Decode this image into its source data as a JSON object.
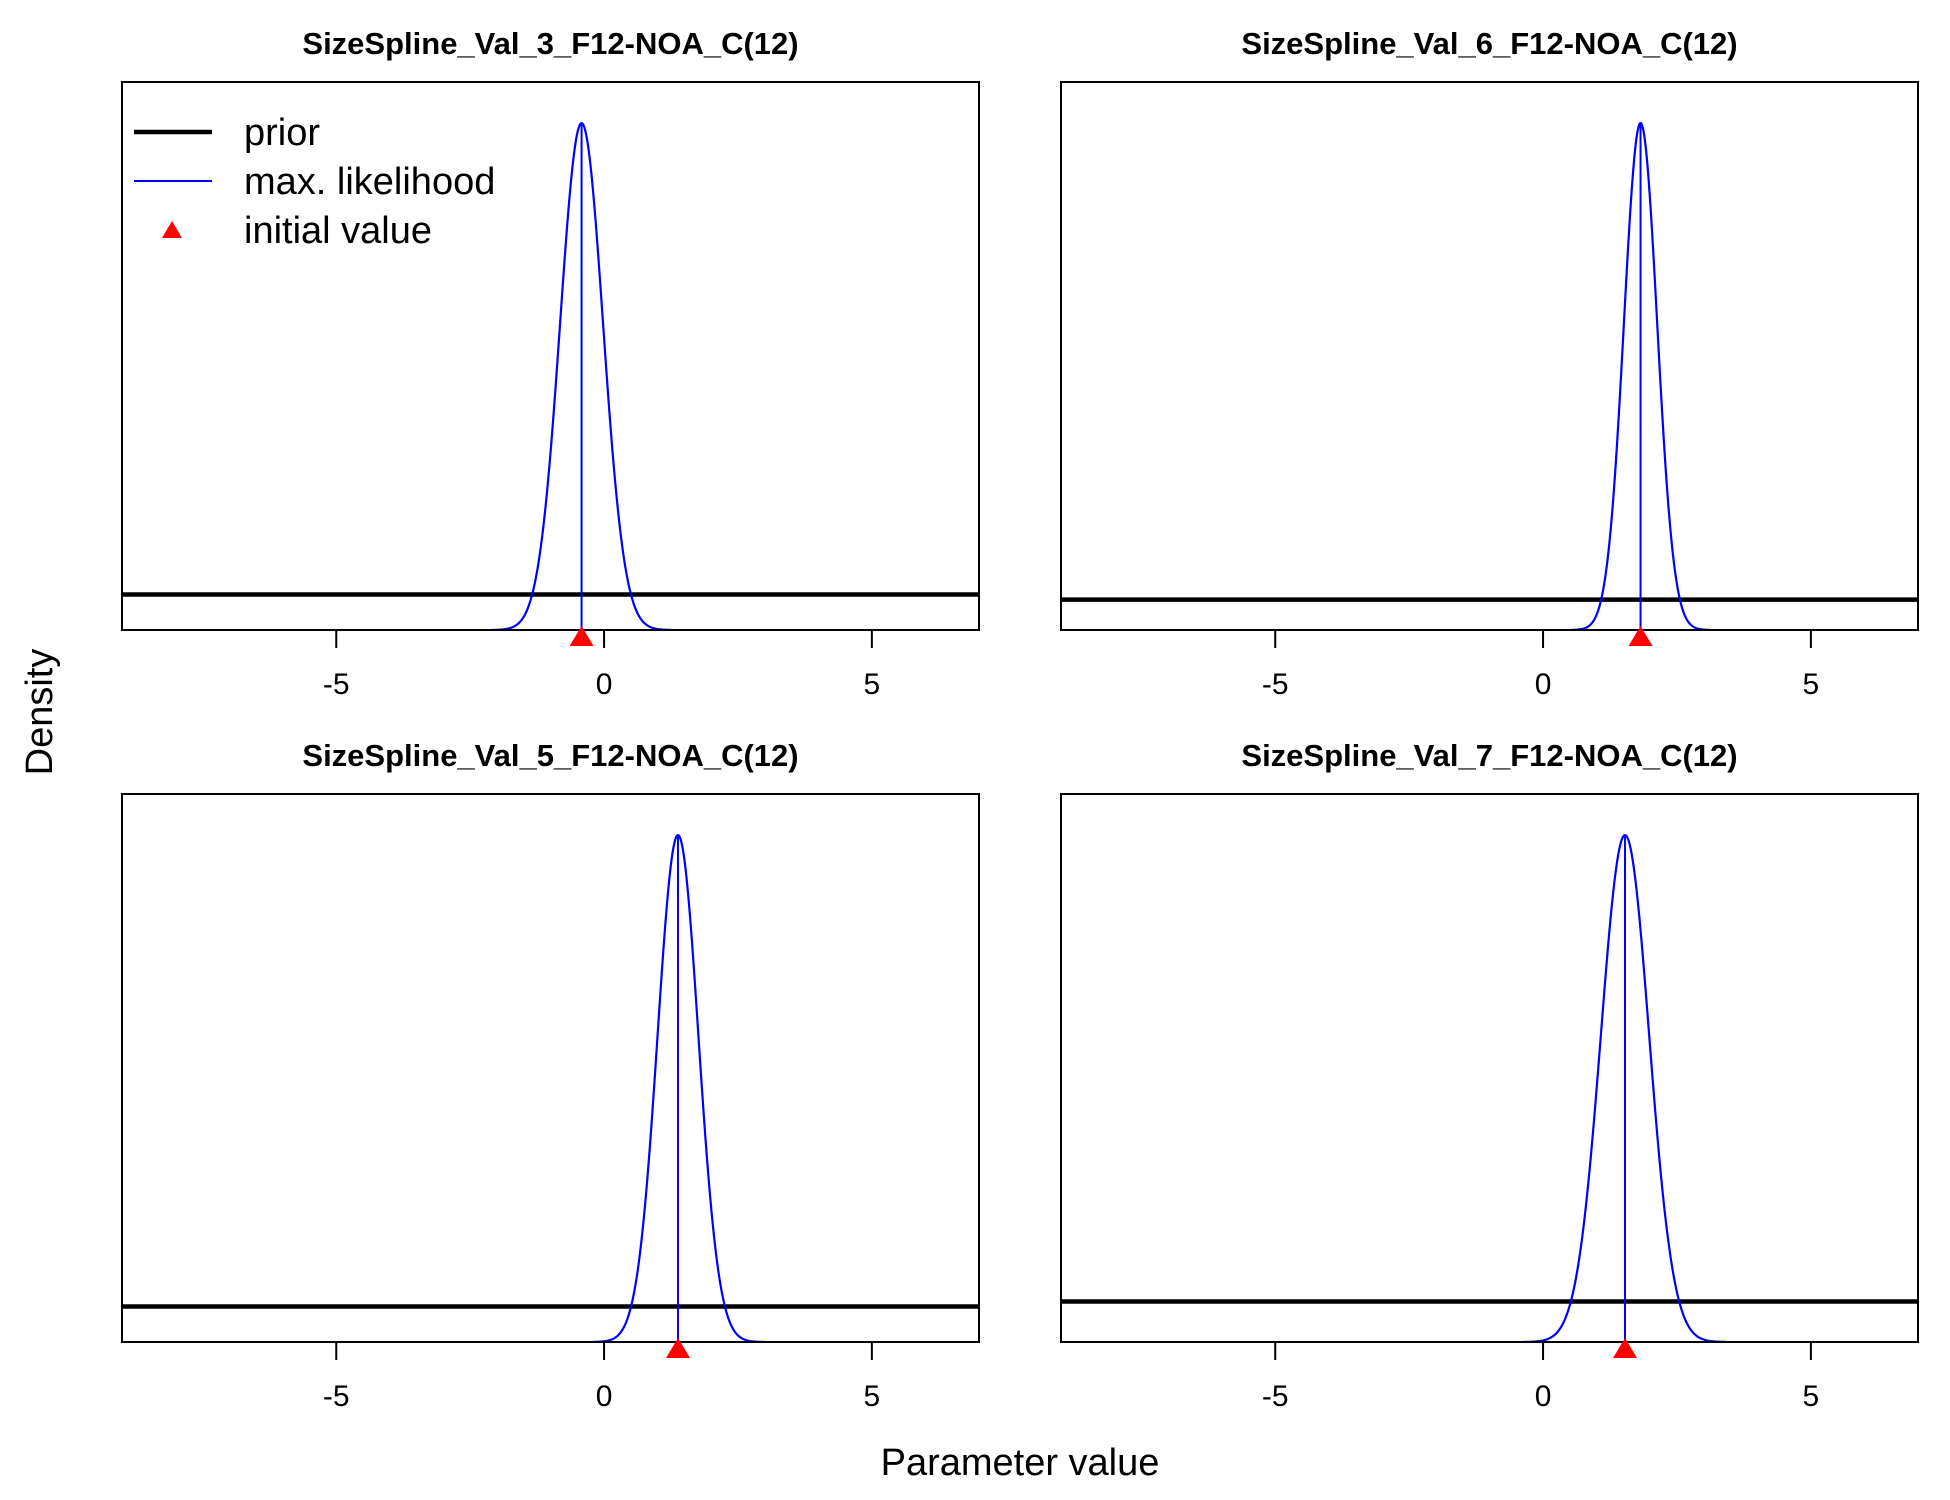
{
  "figure": {
    "xlabel": "Parameter value",
    "ylabel": "Density"
  },
  "legend": {
    "placement": "top-left",
    "entries": [
      {
        "label": "prior",
        "kind": "line",
        "color": "#000000"
      },
      {
        "label": "max. likelihood",
        "kind": "line",
        "color": "#0000ff"
      },
      {
        "label": "initial value",
        "kind": "triangle",
        "color": "#ff0000"
      }
    ]
  },
  "chart_data": [
    {
      "type": "line",
      "title": "SizeSpline_Val_3_F12-NOA_C(12)",
      "xlim": [
        -9,
        7
      ],
      "xticks": [
        -5,
        0,
        5
      ],
      "xtick_labels": [
        "-5",
        "0",
        "5"
      ],
      "series": [
        {
          "name": "prior",
          "kind": "uniform",
          "relative_density": 0.07
        },
        {
          "name": "max. likelihood",
          "kind": "normal",
          "mean": -0.42,
          "sd": 0.4
        }
      ],
      "mle": -0.42,
      "initial_value": -0.42
    },
    {
      "type": "line",
      "title": "SizeSpline_Val_6_F12-NOA_C(12)",
      "xlim": [
        -9,
        7
      ],
      "xticks": [
        -5,
        0,
        5
      ],
      "xtick_labels": [
        "-5",
        "0",
        "5"
      ],
      "series": [
        {
          "name": "prior",
          "kind": "uniform",
          "relative_density": 0.06
        },
        {
          "name": "max. likelihood",
          "kind": "normal",
          "mean": 1.82,
          "sd": 0.31
        }
      ],
      "mle": 1.82,
      "initial_value": 1.82
    },
    {
      "type": "line",
      "title": "SizeSpline_Val_5_F12-NOA_C(12)",
      "xlim": [
        -9,
        7
      ],
      "xticks": [
        -5,
        0,
        5
      ],
      "xtick_labels": [
        "-5",
        "0",
        "5"
      ],
      "series": [
        {
          "name": "prior",
          "kind": "uniform",
          "relative_density": 0.07
        },
        {
          "name": "max. likelihood",
          "kind": "normal",
          "mean": 1.38,
          "sd": 0.38
        }
      ],
      "mle": 1.38,
      "initial_value": 1.38
    },
    {
      "type": "line",
      "title": "SizeSpline_Val_7_F12-NOA_C(12)",
      "xlim": [
        -9,
        7
      ],
      "xticks": [
        -5,
        0,
        5
      ],
      "xtick_labels": [
        "-5",
        "0",
        "5"
      ],
      "series": [
        {
          "name": "prior",
          "kind": "uniform",
          "relative_density": 0.08
        },
        {
          "name": "max. likelihood",
          "kind": "normal",
          "mean": 1.53,
          "sd": 0.45
        }
      ],
      "mle": 1.53,
      "initial_value": 1.53
    }
  ]
}
